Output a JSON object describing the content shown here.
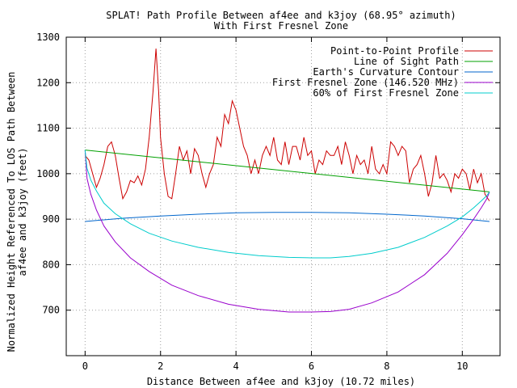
{
  "chart_data": {
    "type": "line",
    "title": "SPLAT! Path Profile Between af4ee and k3joy (68.95° azimuth)",
    "subtitle": "With First Fresnel Zone",
    "xlabel": "Distance Between af4ee and k3joy (10.72 miles)",
    "ylabel_lines": [
      "Normalized Height Referenced To LOS Path Between",
      "af4ee and k3joy (feet)"
    ],
    "xlim": [
      -0.5,
      11.0
    ],
    "ylim": [
      600,
      1300
    ],
    "x_ticks": [
      0,
      2,
      4,
      6,
      8,
      10
    ],
    "x_tick_labels": [
      "0",
      "2",
      "4",
      "6",
      "8",
      "10"
    ],
    "y_ticks": [
      700,
      800,
      900,
      1000,
      1100,
      1200,
      1300
    ],
    "y_tick_labels": [
      "700",
      "800",
      "900",
      "1000",
      "1100",
      "1200",
      "1300"
    ],
    "grid": true,
    "legend_position": "top-right",
    "series": [
      {
        "name": "Point-to-Point Profile",
        "color": "#cc0000",
        "x": [
          0,
          0.1,
          0.2,
          0.3,
          0.4,
          0.5,
          0.6,
          0.7,
          0.8,
          0.9,
          1.0,
          1.1,
          1.2,
          1.3,
          1.4,
          1.5,
          1.6,
          1.7,
          1.8,
          1.88,
          1.95,
          2.0,
          2.1,
          2.2,
          2.3,
          2.4,
          2.5,
          2.6,
          2.7,
          2.8,
          2.9,
          3.0,
          3.1,
          3.2,
          3.3,
          3.4,
          3.5,
          3.6,
          3.7,
          3.8,
          3.9,
          4.0,
          4.1,
          4.2,
          4.3,
          4.4,
          4.5,
          4.6,
          4.7,
          4.8,
          4.9,
          5.0,
          5.1,
          5.2,
          5.3,
          5.4,
          5.5,
          5.6,
          5.7,
          5.8,
          5.9,
          6.0,
          6.1,
          6.2,
          6.3,
          6.4,
          6.5,
          6.6,
          6.7,
          6.8,
          6.9,
          7.0,
          7.1,
          7.2,
          7.3,
          7.4,
          7.5,
          7.6,
          7.7,
          7.8,
          7.9,
          8.0,
          8.1,
          8.2,
          8.3,
          8.4,
          8.5,
          8.6,
          8.7,
          8.8,
          8.9,
          9.0,
          9.1,
          9.2,
          9.3,
          9.4,
          9.5,
          9.6,
          9.7,
          9.8,
          9.9,
          10.0,
          10.1,
          10.2,
          10.3,
          10.4,
          10.5,
          10.6,
          10.72
        ],
        "y": [
          1040,
          1030,
          1000,
          970,
          990,
          1020,
          1060,
          1070,
          1040,
          990,
          945,
          960,
          985,
          980,
          995,
          975,
          1010,
          1080,
          1180,
          1275,
          1180,
          1080,
          1000,
          950,
          945,
          1000,
          1060,
          1030,
          1050,
          1000,
          1055,
          1040,
          1000,
          970,
          1000,
          1020,
          1080,
          1060,
          1130,
          1110,
          1160,
          1140,
          1100,
          1060,
          1040,
          1000,
          1030,
          1000,
          1040,
          1060,
          1040,
          1080,
          1030,
          1020,
          1070,
          1020,
          1060,
          1060,
          1030,
          1080,
          1040,
          1050,
          1000,
          1030,
          1020,
          1050,
          1040,
          1040,
          1060,
          1020,
          1070,
          1040,
          1000,
          1040,
          1020,
          1030,
          1000,
          1060,
          1010,
          1000,
          1020,
          1000,
          1070,
          1060,
          1040,
          1060,
          1050,
          980,
          1010,
          1020,
          1040,
          1000,
          950,
          980,
          1040,
          990,
          1000,
          985,
          960,
          1000,
          990,
          1010,
          1000,
          965,
          1010,
          980,
          1000,
          955,
          940
        ]
      },
      {
        "name": "Line of Sight Path",
        "color": "#00a000",
        "x": [
          0,
          10.72
        ],
        "y": [
          1052,
          960
        ]
      },
      {
        "name": "Earth's Curvature Contour",
        "color": "#0066cc",
        "x": [
          0,
          1,
          2,
          3,
          4,
          5,
          6,
          7,
          8,
          9,
          10,
          10.72
        ],
        "y": [
          895,
          902,
          907,
          911,
          914,
          915,
          915,
          914,
          911,
          907,
          901,
          895
        ]
      },
      {
        "name": "First Fresnel Zone (146.520 MHz)",
        "color": "#9900cc",
        "x": [
          0,
          0.05,
          0.15,
          0.3,
          0.5,
          0.8,
          1.2,
          1.7,
          2.3,
          3.0,
          3.8,
          4.6,
          5.4,
          6.0,
          6.5,
          7.0,
          7.6,
          8.3,
          9.0,
          9.6,
          10.0,
          10.3,
          10.5,
          10.65,
          10.72
        ],
        "y": [
          1052,
          990,
          955,
          920,
          885,
          850,
          815,
          785,
          755,
          732,
          713,
          702,
          696,
          696,
          697,
          702,
          716,
          740,
          778,
          825,
          866,
          900,
          925,
          945,
          960
        ]
      },
      {
        "name": "60% of First Fresnel Zone",
        "color": "#00cccc",
        "x": [
          0,
          0.05,
          0.15,
          0.3,
          0.5,
          0.8,
          1.2,
          1.7,
          2.3,
          3.0,
          3.8,
          4.6,
          5.4,
          6.0,
          6.5,
          7.0,
          7.6,
          8.3,
          9.0,
          9.6,
          10.0,
          10.3,
          10.5,
          10.65,
          10.72
        ],
        "y": [
          1052,
          1012,
          986,
          962,
          935,
          912,
          890,
          869,
          852,
          838,
          827,
          820,
          816,
          815,
          815,
          818,
          825,
          838,
          860,
          885,
          905,
          925,
          940,
          952,
          960
        ]
      }
    ]
  }
}
